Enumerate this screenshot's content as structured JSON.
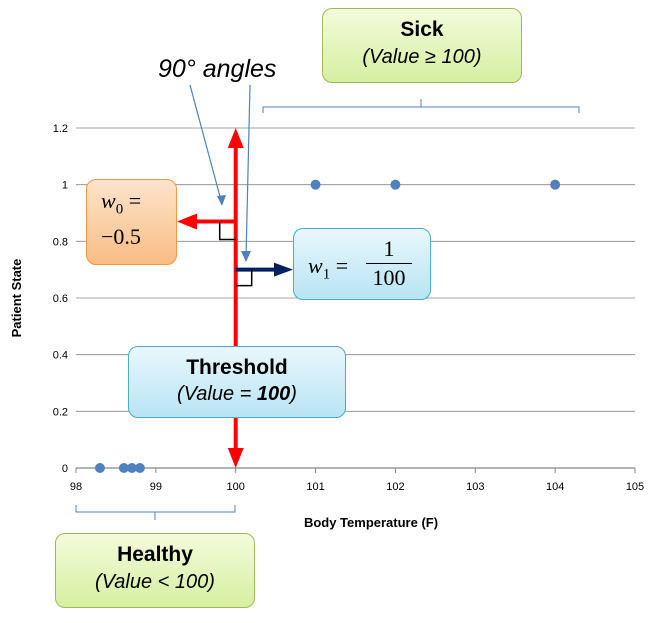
{
  "chart_data": {
    "type": "scatter",
    "xlabel": "Body Temperature (F)",
    "ylabel": "Patient State",
    "xlim": [
      98,
      105
    ],
    "ylim": [
      0,
      1.2
    ],
    "x_ticks": [
      "98",
      "99",
      "100",
      "101",
      "102",
      "103",
      "104",
      "105"
    ],
    "y_ticks": [
      "0",
      "0.2",
      "0.4",
      "0.6",
      "0.8",
      "1",
      "1.2"
    ],
    "grid": true,
    "series": [
      {
        "points": [
          [
            98.3,
            0
          ],
          [
            98.6,
            0
          ],
          [
            98.7,
            0
          ],
          [
            98.8,
            0
          ],
          [
            101,
            1
          ],
          [
            102,
            1
          ],
          [
            104,
            1
          ]
        ]
      }
    ],
    "threshold_x": 100,
    "w0_arrow_y": 0.87,
    "w1_arrow_y": 0.7,
    "colors": {
      "points": "#4f81bd",
      "threshold": "#ff0000",
      "w1_arrow": "#002060",
      "grid": "#868686"
    }
  },
  "annotations": {
    "sick_title": "Sick",
    "sick_sub": "(Value ≥ 100)",
    "healthy_title": "Healthy",
    "healthy_sub": "(Value < 100)",
    "threshold_title": "Threshold",
    "threshold_sub_prefix": "(Value = ",
    "threshold_sub_value": "100",
    "threshold_sub_suffix": ")",
    "angles_label": "90° angles",
    "w0_name": "w",
    "w0_sub": "0",
    "w0_eq": " =",
    "w0_value": "−0.5",
    "w1_name": "w",
    "w1_sub": "1",
    "w1_eq": " =",
    "w1_num": "1",
    "w1_den": "100"
  }
}
